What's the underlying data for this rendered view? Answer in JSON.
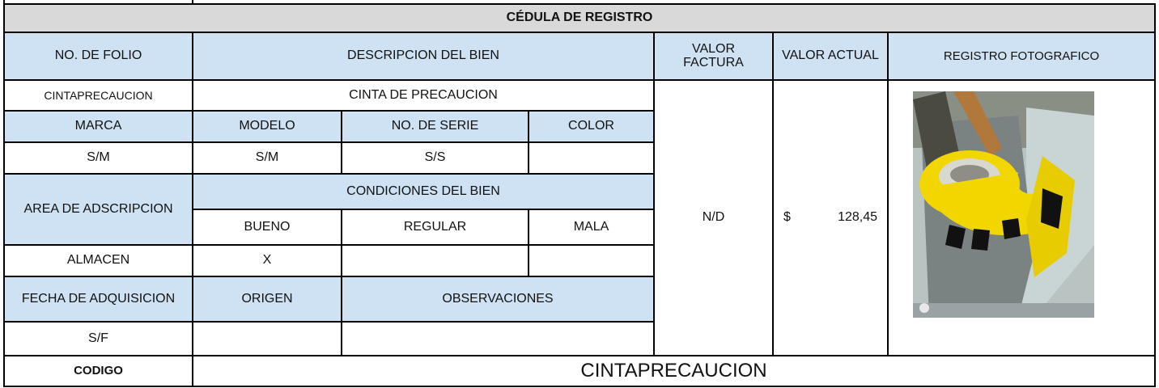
{
  "title": "CÉDULA DE REGISTRO",
  "headers": [
    "NO. DE FOLIO",
    "DESCRIPCION DEL BIEN",
    "VALOR FACTURA",
    "VALOR ACTUAL",
    "REGISTRO FOTOGRAFICO"
  ],
  "folio": "CINTAPRECAUCION",
  "descripcion": "CINTA DE PRECAUCION",
  "marca_label": "MARCA",
  "modelo_label": "MODELO",
  "serie_label": "NO. DE SERIE",
  "color_label": "COLOR",
  "marca": "S/M",
  "modelo": "S/M",
  "serie": "S/S",
  "area_label": "AREA DE ADSCRIPCION",
  "condiciones_label": "CONDICIONES DEL BIEN",
  "bueno_label": "BUENO",
  "regular_label": "REGULAR",
  "mala_label": "MALA",
  "area": "ALMACEN",
  "bueno": "X",
  "fecha_label": "FECHA DE ADQUISICION",
  "origen_label": "ORIGEN",
  "observaciones_label": "OBSERVACIONES",
  "fecha": "S/F",
  "valor_factura": "N/D",
  "valor_actual_currency": "$",
  "valor_actual": "128,45",
  "codigo_label": "CODIGO",
  "codigo": "CINTAPRECAUCION"
}
